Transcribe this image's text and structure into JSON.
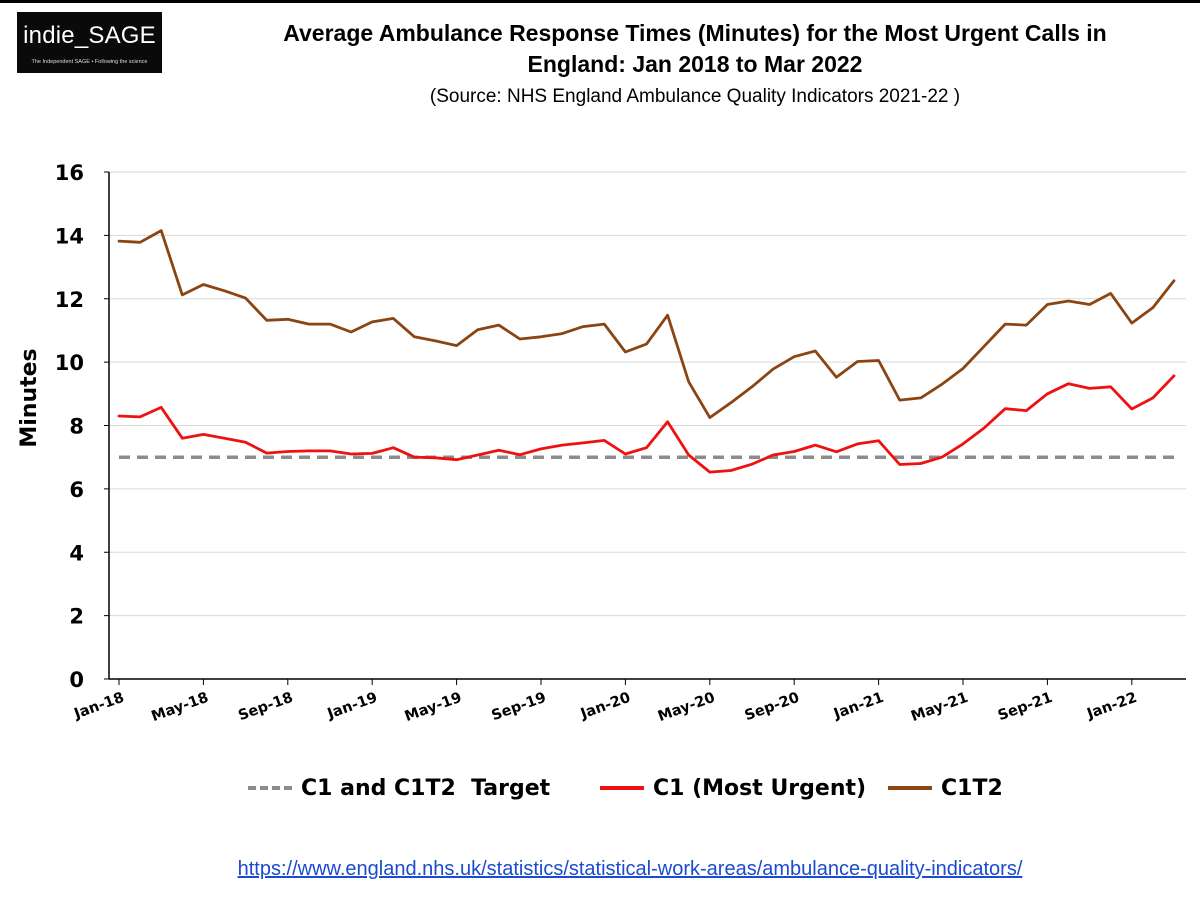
{
  "logo": {
    "name": "indie_SAGE",
    "tagline": "The Independent SAGE • Following the science"
  },
  "title_line1": "Average Ambulance Response Times (Minutes) for the Most Urgent Calls in",
  "title_line2": "England: Jan 2018 to Mar 2022",
  "subtitle": "(Source: NHS England Ambulance Quality Indicators 2021-22 )",
  "source_url": "https://www.england.nhs.uk/statistics/statistical-work-areas/ambulance-quality-indicators/",
  "colors": {
    "target": "#8c8c8c",
    "c1": "#ee1111",
    "c1t2": "#8b4512",
    "grid": "#d9d9d9",
    "link": "#1a4bd0"
  },
  "chart_data": {
    "type": "line",
    "title": "Average Ambulance Response Times (Minutes) for the Most Urgent Calls in England: Jan 2018 to Mar 2022",
    "xlabel": "",
    "ylabel": "Minutes",
    "ylim": [
      0,
      16
    ],
    "yticks": [
      0,
      2,
      4,
      6,
      8,
      10,
      12,
      14,
      16
    ],
    "grid": "horizontal",
    "legend_position": "bottom",
    "x_tick_labels": [
      "Jan-18",
      "May-18",
      "Sep-18",
      "Jan-19",
      "May-19",
      "Sep-19",
      "Jan-20",
      "May-20",
      "Sep-20",
      "Jan-21",
      "May-21",
      "Sep-21",
      "Jan-22"
    ],
    "x_months": [
      "Jan-18",
      "Feb-18",
      "Mar-18",
      "Apr-18",
      "May-18",
      "Jun-18",
      "Jul-18",
      "Aug-18",
      "Sep-18",
      "Oct-18",
      "Nov-18",
      "Dec-18",
      "Jan-19",
      "Feb-19",
      "Mar-19",
      "Apr-19",
      "May-19",
      "Jun-19",
      "Jul-19",
      "Aug-19",
      "Sep-19",
      "Oct-19",
      "Nov-19",
      "Dec-19",
      "Jan-20",
      "Feb-20",
      "Mar-20",
      "Apr-20",
      "May-20",
      "Jun-20",
      "Jul-20",
      "Aug-20",
      "Sep-20",
      "Oct-20",
      "Nov-20",
      "Dec-20",
      "Jan-21",
      "Feb-21",
      "Mar-21",
      "Apr-21",
      "May-21",
      "Jun-21",
      "Jul-21",
      "Aug-21",
      "Sep-21",
      "Oct-21",
      "Nov-21",
      "Dec-21",
      "Jan-22",
      "Feb-22",
      "Mar-22"
    ],
    "series": [
      {
        "name": "C1 and C1T2  Target",
        "style": "dashed",
        "values": [
          7,
          7,
          7,
          7,
          7,
          7,
          7,
          7,
          7,
          7,
          7,
          7,
          7,
          7,
          7,
          7,
          7,
          7,
          7,
          7,
          7,
          7,
          7,
          7,
          7,
          7,
          7,
          7,
          7,
          7,
          7,
          7,
          7,
          7,
          7,
          7,
          7,
          7,
          7,
          7,
          7,
          7,
          7,
          7,
          7,
          7,
          7,
          7,
          7,
          7,
          7
        ]
      },
      {
        "name": "C1 (Most Urgent)",
        "style": "solid",
        "values": [
          8.3,
          8.27,
          8.57,
          7.6,
          7.72,
          7.6,
          7.47,
          7.13,
          7.18,
          7.2,
          7.2,
          7.1,
          7.12,
          7.3,
          7.0,
          6.98,
          6.92,
          7.07,
          7.22,
          7.08,
          7.26,
          7.38,
          7.45,
          7.53,
          7.1,
          7.3,
          8.12,
          7.07,
          6.53,
          6.58,
          6.78,
          7.07,
          7.18,
          7.38,
          7.17,
          7.42,
          7.52,
          6.77,
          6.8,
          7.0,
          7.42,
          7.92,
          8.53,
          8.47,
          9.0,
          9.32,
          9.17,
          9.22,
          8.52,
          8.87,
          9.57
        ]
      },
      {
        "name": "C1T2",
        "style": "solid",
        "values": [
          13.82,
          13.78,
          14.15,
          12.12,
          12.45,
          12.25,
          12.02,
          11.32,
          11.35,
          11.2,
          11.2,
          10.95,
          11.27,
          11.38,
          10.8,
          10.67,
          10.52,
          11.02,
          11.17,
          10.73,
          10.8,
          10.9,
          11.12,
          11.2,
          10.32,
          10.57,
          11.48,
          9.38,
          8.25,
          8.72,
          9.22,
          9.78,
          10.17,
          10.35,
          9.52,
          10.02,
          10.05,
          8.8,
          8.87,
          9.3,
          9.8,
          10.5,
          11.2,
          11.17,
          11.82,
          11.93,
          11.82,
          12.17,
          11.23,
          11.72,
          12.57
        ]
      }
    ]
  }
}
